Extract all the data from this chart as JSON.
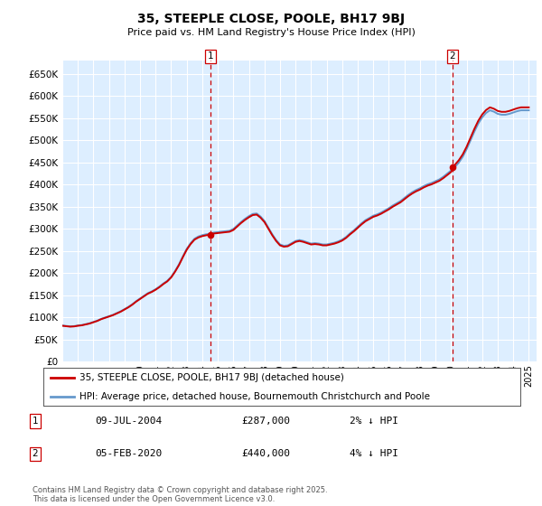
{
  "title": "35, STEEPLE CLOSE, POOLE, BH17 9BJ",
  "subtitle": "Price paid vs. HM Land Registry's House Price Index (HPI)",
  "xlim_start": 1995.0,
  "xlim_end": 2025.5,
  "ylim": [
    0,
    680000
  ],
  "yticks": [
    0,
    50000,
    100000,
    150000,
    200000,
    250000,
    300000,
    350000,
    400000,
    450000,
    500000,
    550000,
    600000,
    650000
  ],
  "ytick_labels": [
    "£0",
    "£50K",
    "£100K",
    "£150K",
    "£200K",
    "£250K",
    "£300K",
    "£350K",
    "£400K",
    "£450K",
    "£500K",
    "£550K",
    "£600K",
    "£650K"
  ],
  "sale1_date": 2004.52,
  "sale1_price": 287000,
  "sale1_info": "09-JUL-2004",
  "sale1_price_str": "£287,000",
  "sale1_pct": "2% ↓ HPI",
  "sale2_date": 2020.09,
  "sale2_price": 440000,
  "sale2_info": "05-FEB-2020",
  "sale2_price_str": "£440,000",
  "sale2_pct": "4% ↓ HPI",
  "line_color_red": "#cc0000",
  "line_color_blue": "#6699cc",
  "bg_color": "#ddeeff",
  "grid_color": "#ffffff",
  "legend1": "35, STEEPLE CLOSE, POOLE, BH17 9BJ (detached house)",
  "legend2": "HPI: Average price, detached house, Bournemouth Christchurch and Poole",
  "footer": "Contains HM Land Registry data © Crown copyright and database right 2025.\nThis data is licensed under the Open Government Licence v3.0.",
  "hpi_years": [
    1995.0,
    1995.25,
    1995.5,
    1995.75,
    1996.0,
    1996.25,
    1996.5,
    1996.75,
    1997.0,
    1997.25,
    1997.5,
    1997.75,
    1998.0,
    1998.25,
    1998.5,
    1998.75,
    1999.0,
    1999.25,
    1999.5,
    1999.75,
    2000.0,
    2000.25,
    2000.5,
    2000.75,
    2001.0,
    2001.25,
    2001.5,
    2001.75,
    2002.0,
    2002.25,
    2002.5,
    2002.75,
    2003.0,
    2003.25,
    2003.5,
    2003.75,
    2004.0,
    2004.25,
    2004.5,
    2004.75,
    2005.0,
    2005.25,
    2005.5,
    2005.75,
    2006.0,
    2006.25,
    2006.5,
    2006.75,
    2007.0,
    2007.25,
    2007.5,
    2007.75,
    2008.0,
    2008.25,
    2008.5,
    2008.75,
    2009.0,
    2009.25,
    2009.5,
    2009.75,
    2010.0,
    2010.25,
    2010.5,
    2010.75,
    2011.0,
    2011.25,
    2011.5,
    2011.75,
    2012.0,
    2012.25,
    2012.5,
    2012.75,
    2013.0,
    2013.25,
    2013.5,
    2013.75,
    2014.0,
    2014.25,
    2014.5,
    2014.75,
    2015.0,
    2015.25,
    2015.5,
    2015.75,
    2016.0,
    2016.25,
    2016.5,
    2016.75,
    2017.0,
    2017.25,
    2017.5,
    2017.75,
    2018.0,
    2018.25,
    2018.5,
    2018.75,
    2019.0,
    2019.25,
    2019.5,
    2019.75,
    2020.0,
    2020.25,
    2020.5,
    2020.75,
    2021.0,
    2021.25,
    2021.5,
    2021.75,
    2022.0,
    2022.25,
    2022.5,
    2022.75,
    2023.0,
    2023.25,
    2023.5,
    2023.75,
    2024.0,
    2024.25,
    2024.5,
    2024.75,
    2025.0
  ],
  "hpi_values": [
    82000,
    81000,
    80000,
    80500,
    82000,
    83000,
    85000,
    87000,
    90000,
    93000,
    97000,
    100000,
    103000,
    106000,
    110000,
    114000,
    119000,
    124000,
    130000,
    137000,
    143000,
    149000,
    155000,
    159000,
    164000,
    170000,
    177000,
    183000,
    192000,
    205000,
    220000,
    238000,
    255000,
    268000,
    278000,
    283000,
    286000,
    288000,
    289000,
    292000,
    293000,
    294000,
    295000,
    296000,
    300000,
    308000,
    316000,
    323000,
    329000,
    334000,
    335000,
    328000,
    318000,
    303000,
    288000,
    275000,
    265000,
    262000,
    263000,
    268000,
    273000,
    275000,
    273000,
    270000,
    267000,
    268000,
    267000,
    265000,
    265000,
    267000,
    269000,
    272000,
    276000,
    282000,
    290000,
    297000,
    305000,
    313000,
    320000,
    325000,
    330000,
    333000,
    337000,
    342000,
    347000,
    353000,
    358000,
    363000,
    370000,
    377000,
    383000,
    388000,
    392000,
    397000,
    401000,
    404000,
    408000,
    412000,
    418000,
    425000,
    432000,
    440000,
    450000,
    463000,
    480000,
    500000,
    520000,
    538000,
    552000,
    562000,
    568000,
    565000,
    560000,
    558000,
    558000,
    560000,
    563000,
    566000,
    568000,
    568000,
    568000
  ]
}
